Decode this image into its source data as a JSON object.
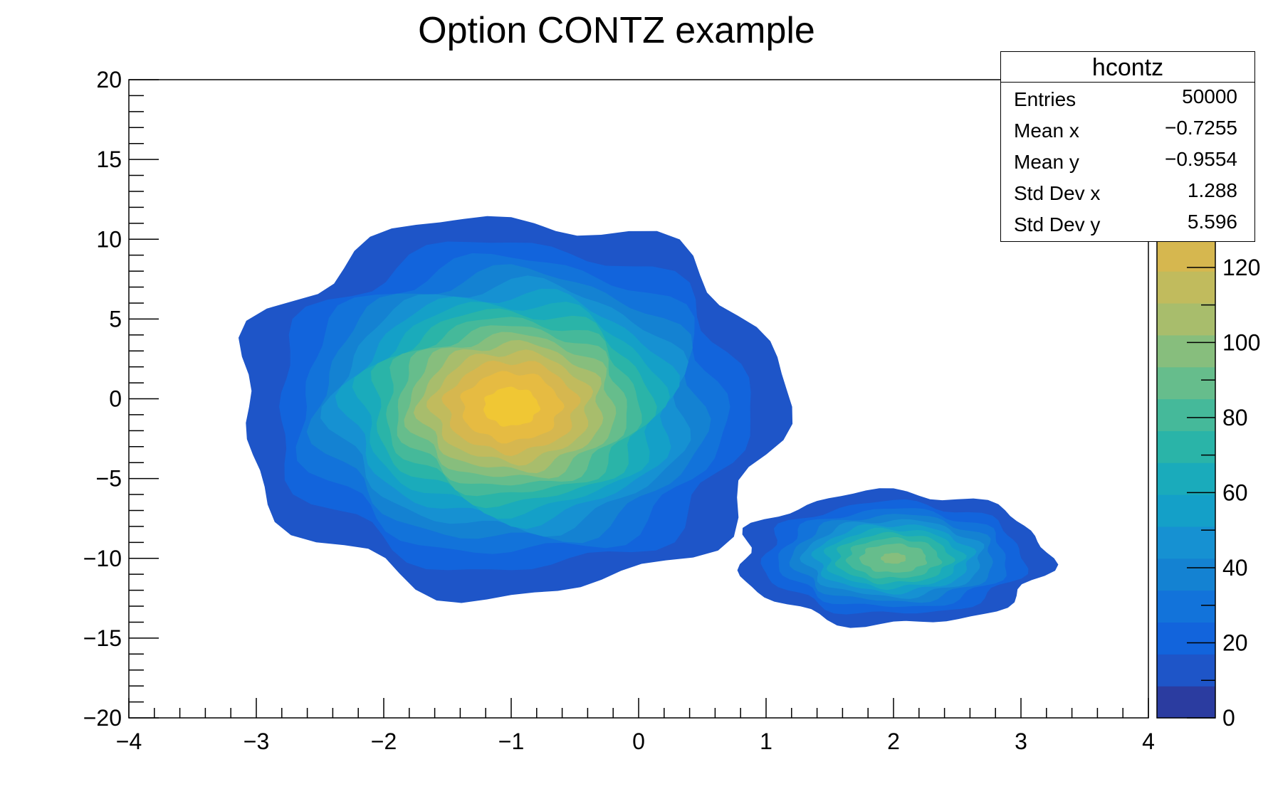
{
  "chart_data": {
    "type": "heatmap",
    "style": "filled contour (ROOT option CONTZ) with color palette",
    "title": "Option CONTZ example",
    "xlabel": "",
    "ylabel": "",
    "xlim": [
      -4,
      4
    ],
    "ylim": [
      -20,
      20
    ],
    "x_ticks": [
      "−4",
      "−3",
      "−2",
      "−1",
      "0",
      "1",
      "2",
      "3",
      "4"
    ],
    "y_ticks": [
      "−20",
      "−15",
      "−10",
      "−5",
      "0",
      "5",
      "10",
      "15",
      "20"
    ],
    "colorbar": {
      "range": [
        0,
        170
      ],
      "tick_labels": [
        "0",
        "20",
        "40",
        "60",
        "80",
        "100",
        "120"
      ],
      "tick_values": [
        0,
        20,
        40,
        60,
        80,
        100,
        120
      ],
      "levels": 20,
      "palette": [
        "#2b3ca0",
        "#1e55c8",
        "#1264dc",
        "#1273da",
        "#1482d2",
        "#1691d2",
        "#14a0c8",
        "#1aabbb",
        "#2ab4a8",
        "#45b99a",
        "#66bd8c",
        "#87be7d",
        "#a8bd6c",
        "#c1bb5d",
        "#d6b74f",
        "#e6bb42",
        "#f0c734",
        "#f5d824",
        "#f8ea18",
        "#fafa0e"
      ]
    },
    "blobs": [
      {
        "center_x": -1.0,
        "center_y": -0.5,
        "sigma_x": 0.9,
        "sigma_y": 5.0,
        "peak": 140,
        "max_level_visible": 150
      },
      {
        "center_x": 2.0,
        "center_y": -10.0,
        "sigma_x": 0.55,
        "sigma_y": 1.9,
        "peak": 95
      }
    ],
    "stats": {
      "name": "hcontz",
      "entries": 50000,
      "mean_x": -0.7255,
      "mean_y": -0.9554,
      "std_dev_x": 1.288,
      "std_dev_y": 5.596
    }
  },
  "stats_box": {
    "title": "hcontz",
    "rows": [
      {
        "label": "Entries",
        "value": "50000"
      },
      {
        "label": "Mean x",
        "value": "−0.7255"
      },
      {
        "label": "Mean y",
        "value": "−0.9554"
      },
      {
        "label": "Std Dev x",
        "value": "1.288"
      },
      {
        "label": "Std Dev y",
        "value": "5.596"
      }
    ]
  }
}
